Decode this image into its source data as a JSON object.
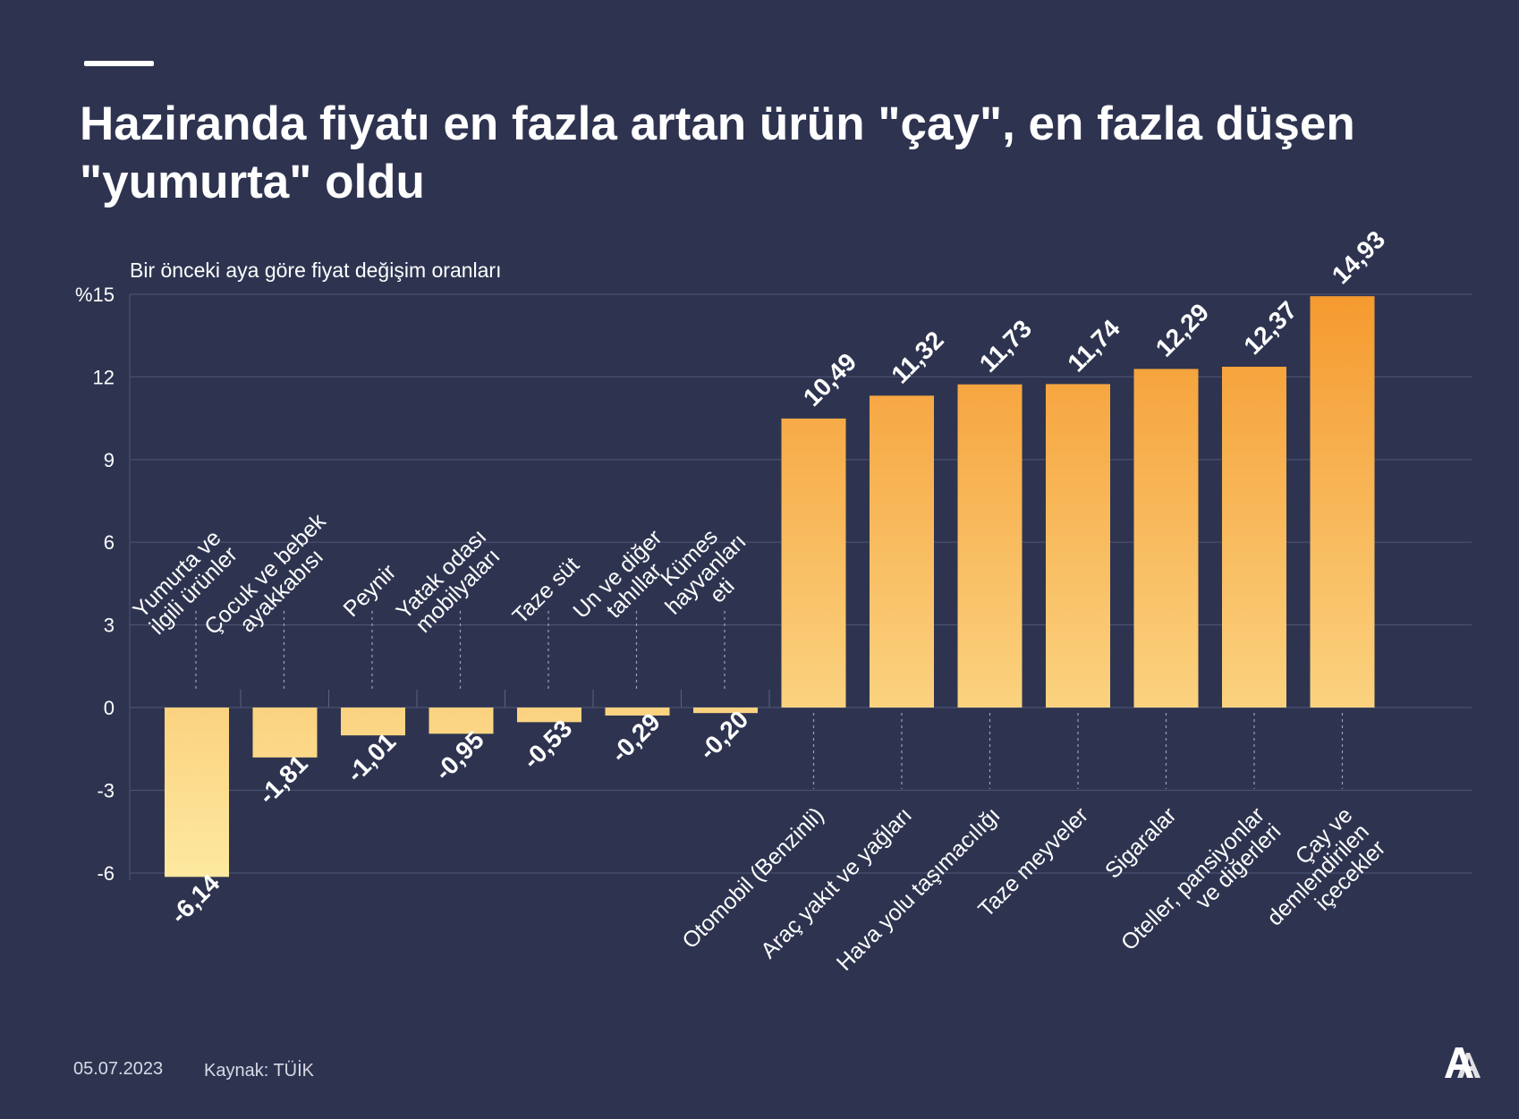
{
  "header": {
    "title": "Haziranda fiyatı en fazla artan ürün \"çay\", en fazla düşen\n\"yumurta\" oldu",
    "subtitle": "Bir önceki aya göre fiyat değişim oranları"
  },
  "footer": {
    "date": "05.07.2023",
    "source": "Kaynak: TÜİK",
    "logo_text": "AA"
  },
  "colors": {
    "background": "#2e3450",
    "bar_top": "#f59a2f",
    "bar_bottom": "#fde9a0",
    "grid": "#4a5070"
  },
  "chart_data": {
    "type": "bar",
    "title": "Haziranda fiyatı en fazla artan ürün \"çay\", en fazla düşen \"yumurta\" oldu",
    "ylabel": "Bir önceki aya göre fiyat değişim oranları",
    "ylim": [
      -6,
      15
    ],
    "yticks": [
      -6,
      -3,
      0,
      3,
      6,
      9,
      12,
      15
    ],
    "ytick_labels": [
      "-6",
      "-3",
      "0",
      "3",
      "6",
      "9",
      "12",
      "%15"
    ],
    "grid": true,
    "categories": [
      "Yumurta ve\nilgili ürünler",
      "Çocuk ve bebek\nayakkabısı",
      "Peynir",
      "Yatak odası\nmobilyaları",
      "Taze süt",
      "Un ve diğer\ntahıllar",
      "Kümes\nhayvanları\neti",
      "Otomobil (Benzinli)",
      "Araç yakıt ve yağları",
      "Hava yolu taşımacılığı",
      "Taze meyveler",
      "Sigaralar",
      "Oteller, pansiyonlar\nve diğerleri",
      "Çay ve\ndemlendirilen\niçecekler"
    ],
    "values": [
      -6.14,
      -1.81,
      -1.01,
      -0.95,
      -0.53,
      -0.29,
      -0.2,
      10.49,
      11.32,
      11.73,
      11.74,
      12.29,
      12.37,
      14.93
    ],
    "value_labels": [
      "-6,14",
      "-1,81",
      "-1,01",
      "-0,95",
      "-0,53",
      "-0,29",
      "-0,20",
      "10,49",
      "11,32",
      "11,73",
      "11,74",
      "12,29",
      "12,37",
      "14,93"
    ]
  }
}
